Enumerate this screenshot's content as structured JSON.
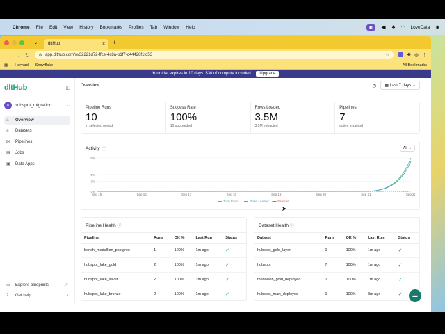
{
  "menubar": {
    "app": "Chrome",
    "items": [
      "File",
      "Edit",
      "View",
      "History",
      "Bookmarks",
      "Profiles",
      "Tab",
      "Window",
      "Help"
    ],
    "right_user": "LoveData"
  },
  "browser": {
    "tab_title": "dltHub",
    "url": "app.dlthub.com/w/32221d72-ffce-4c8a-b1f7-c44428f1fd53",
    "bookmarks": [
      "Harvard",
      "Snowflake"
    ],
    "all_bookmarks": "All Bookmarks"
  },
  "banner": {
    "text": "Your trial expires in 10 days. $30 of compute included.",
    "button": "Upgrade"
  },
  "sidebar": {
    "logo": "dltHub",
    "workspace": "hubspot_migration",
    "workspace_initial": "h",
    "items": [
      {
        "label": "Overview",
        "icon": "home-icon"
      },
      {
        "label": "Datasets",
        "icon": "database-icon"
      },
      {
        "label": "Pipelines",
        "icon": "pipeline-icon"
      },
      {
        "label": "Jobs",
        "icon": "jobs-icon"
      },
      {
        "label": "Data Apps",
        "icon": "apps-icon"
      }
    ],
    "bottom": [
      {
        "label": "Explore blueprints"
      },
      {
        "label": "Get help"
      }
    ]
  },
  "main": {
    "title": "Overview",
    "date_range": "Last 7 days",
    "stats": [
      {
        "label": "Pipeline Runs",
        "value": "10",
        "sub": "in selected period"
      },
      {
        "label": "Success Rate",
        "value": "100%",
        "sub": "10 succeeded"
      },
      {
        "label": "Rows Loaded",
        "value": "3.5M",
        "sub": "3.5M extracted"
      },
      {
        "label": "Pipelines",
        "value": "7",
        "sub": "active in period"
      }
    ],
    "activity": {
      "title": "Activity",
      "filter": "All"
    },
    "pipeline_health": {
      "title": "Pipeline Health",
      "columns": [
        "Pipeline",
        "Runs",
        "OK %",
        "Last Run",
        "Status"
      ],
      "rows": [
        [
          "bench_medallion_postgres",
          "1",
          "100%",
          "1m ago"
        ],
        [
          "hubspot_lake_gold",
          "2",
          "100%",
          "1m ago"
        ],
        [
          "hubspot_lake_silver",
          "2",
          "100%",
          "1m ago"
        ],
        [
          "hubspot_lake_bronze",
          "2",
          "100%",
          "1m ago"
        ]
      ]
    },
    "dataset_health": {
      "title": "Dataset Health",
      "columns": [
        "Dataset",
        "Runs",
        "OK %",
        "Last Run",
        "Status"
      ],
      "rows": [
        [
          "hubspot_gold_layer",
          "1",
          "100%",
          "1m ago"
        ],
        [
          "hubspot",
          "7",
          "100%",
          "1m ago"
        ],
        [
          "medallion_gold_deployed",
          "1",
          "100%",
          "7m ago"
        ],
        [
          "hubspot_mart_deployed",
          "1",
          "100%",
          "8m ago"
        ]
      ]
    }
  },
  "chart_data": {
    "type": "line",
    "x": [
      "Sep 15",
      "Sep 16",
      "Sep 17",
      "Sep 18",
      "Sep 19",
      "Sep 20",
      "Sep 21",
      "Sep 22"
    ],
    "yticks": [
      "0%",
      "3%",
      "5%",
      "10%"
    ],
    "ylim": [
      0,
      10
    ],
    "series": [
      {
        "name": "Total Runs",
        "color": "#5bb98c",
        "values": [
          0,
          0,
          0,
          0,
          0,
          0,
          0,
          10
        ]
      },
      {
        "name": "Rows Loaded",
        "color": "#4aa3c8",
        "values": [
          0,
          0,
          0,
          0,
          0,
          0,
          0,
          9
        ]
      },
      {
        "name": "Failures",
        "color": "#e05a5a",
        "values": [
          0,
          0,
          0,
          0,
          0,
          0,
          0,
          0
        ]
      }
    ],
    "grid": true,
    "legend": "bottom"
  }
}
